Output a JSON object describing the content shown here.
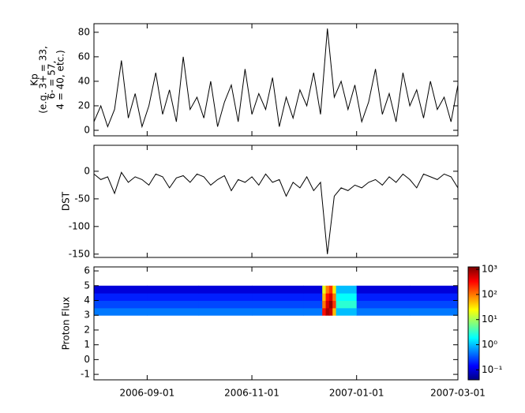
{
  "chart_data": [
    {
      "type": "line",
      "ylabel": [
        "Kp",
        "(e.g. 3+ = 33,",
        "6- = 57,",
        "4 = 40, etc.)"
      ],
      "x": [
        "2006-08-01",
        "2006-08-05",
        "2006-08-09",
        "2006-08-13",
        "2006-08-17",
        "2006-08-21",
        "2006-08-25",
        "2006-08-29",
        "2006-09-02",
        "2006-09-06",
        "2006-09-10",
        "2006-09-14",
        "2006-09-18",
        "2006-09-22",
        "2006-09-26",
        "2006-09-30",
        "2006-10-04",
        "2006-10-08",
        "2006-10-12",
        "2006-10-16",
        "2006-10-20",
        "2006-10-24",
        "2006-10-28",
        "2006-11-01",
        "2006-11-05",
        "2006-11-09",
        "2006-11-13",
        "2006-11-17",
        "2006-11-21",
        "2006-11-25",
        "2006-11-29",
        "2006-12-03",
        "2006-12-07",
        "2006-12-11",
        "2006-12-15",
        "2006-12-19",
        "2006-12-23",
        "2006-12-27",
        "2006-12-31",
        "2007-01-04",
        "2007-01-08",
        "2007-01-12",
        "2007-01-16",
        "2007-01-20",
        "2007-01-24",
        "2007-01-28",
        "2007-02-01",
        "2007-02-05",
        "2007-02-09",
        "2007-02-13",
        "2007-02-17",
        "2007-02-21",
        "2007-02-25",
        "2007-03-01"
      ],
      "series": [
        {
          "color": "#000000",
          "values": [
            7,
            20,
            3,
            17,
            57,
            10,
            30,
            3,
            20,
            47,
            13,
            33,
            7,
            60,
            17,
            27,
            10,
            40,
            3,
            23,
            37,
            7,
            50,
            13,
            30,
            17,
            43,
            3,
            27,
            10,
            33,
            20,
            47,
            13,
            83,
            27,
            40,
            17,
            37,
            7,
            23,
            50,
            13,
            30,
            7,
            47,
            20,
            33,
            10,
            40,
            17,
            27,
            7,
            37
          ]
        }
      ],
      "xlim": [
        "2006-08-01",
        "2007-03-01"
      ],
      "xticks": [
        "2006-09-01",
        "2006-11-01",
        "2007-01-01",
        "2007-03-01"
      ],
      "ylim": [
        -4.5,
        87
      ],
      "yticks": [
        0,
        20,
        40,
        60,
        80
      ]
    },
    {
      "type": "line",
      "ylabel": [
        "DST"
      ],
      "x": [
        "2006-08-01",
        "2006-08-05",
        "2006-08-09",
        "2006-08-13",
        "2006-08-17",
        "2006-08-21",
        "2006-08-25",
        "2006-08-29",
        "2006-09-02",
        "2006-09-06",
        "2006-09-10",
        "2006-09-14",
        "2006-09-18",
        "2006-09-22",
        "2006-09-26",
        "2006-09-30",
        "2006-10-04",
        "2006-10-08",
        "2006-10-12",
        "2006-10-16",
        "2006-10-20",
        "2006-10-24",
        "2006-10-28",
        "2006-11-01",
        "2006-11-05",
        "2006-11-09",
        "2006-11-13",
        "2006-11-17",
        "2006-11-21",
        "2006-11-25",
        "2006-11-29",
        "2006-12-03",
        "2006-12-07",
        "2006-12-11",
        "2006-12-15",
        "2006-12-19",
        "2006-12-23",
        "2006-12-27",
        "2006-12-31",
        "2007-01-04",
        "2007-01-08",
        "2007-01-12",
        "2007-01-16",
        "2007-01-20",
        "2007-01-24",
        "2007-01-28",
        "2007-02-01",
        "2007-02-05",
        "2007-02-09",
        "2007-02-13",
        "2007-02-17",
        "2007-02-21",
        "2007-02-25",
        "2007-03-01"
      ],
      "series": [
        {
          "color": "#000000",
          "values": [
            -5,
            -15,
            -10,
            -40,
            -2,
            -20,
            -10,
            -15,
            -25,
            -5,
            -10,
            -30,
            -12,
            -8,
            -20,
            -5,
            -10,
            -25,
            -15,
            -8,
            -35,
            -15,
            -20,
            -10,
            -25,
            -5,
            -20,
            -15,
            -45,
            -20,
            -30,
            -10,
            -35,
            -20,
            -150,
            -45,
            -30,
            -35,
            -25,
            -30,
            -20,
            -15,
            -25,
            -10,
            -20,
            -5,
            -15,
            -30,
            -5,
            -10,
            -15,
            -5,
            -10,
            -30
          ]
        }
      ],
      "xlim": [
        "2006-08-01",
        "2007-03-01"
      ],
      "xticks": [
        "2006-09-01",
        "2006-11-01",
        "2007-01-01",
        "2007-03-01"
      ],
      "ylim": [
        -156,
        47
      ],
      "yticks": [
        0,
        -50,
        -100,
        -150
      ]
    },
    {
      "type": "heatmap",
      "ylabel": [
        "Proton Flux"
      ],
      "x_edges": [
        "2006-08-01",
        "2006-09-01",
        "2006-10-01",
        "2006-11-01",
        "2006-12-01",
        "2006-12-12",
        "2006-12-14",
        "2006-12-16",
        "2006-12-18",
        "2006-12-20",
        "2007-01-01",
        "2007-02-01",
        "2007-03-01"
      ],
      "y_edges": [
        3,
        3.5,
        4,
        4.5,
        5
      ],
      "z": [
        [
          0.5,
          0.5,
          0.5,
          0.5,
          0.5,
          300,
          800,
          600,
          50,
          1,
          0.5,
          0.5
        ],
        [
          0.3,
          0.3,
          0.3,
          0.3,
          0.3,
          100,
          500,
          1000,
          200,
          3,
          0.3,
          0.3
        ],
        [
          0.2,
          0.2,
          0.2,
          0.2,
          0.2,
          50,
          300,
          500,
          100,
          2,
          0.2,
          0.2
        ],
        [
          0.1,
          0.1,
          0.1,
          0.1,
          0.1,
          20,
          100,
          200,
          30,
          1,
          0.1,
          0.1
        ]
      ],
      "zlim": [
        0.04,
        1250
      ],
      "zlog": true,
      "zticks": [
        {
          "value": 0.1,
          "label": "10⁻¹"
        },
        {
          "value": 1,
          "label": "10⁰"
        },
        {
          "value": 10,
          "label": "10¹"
        },
        {
          "value": 100,
          "label": "10²"
        },
        {
          "value": 1000,
          "label": "10³"
        }
      ],
      "xlim": [
        "2006-08-01",
        "2007-03-01"
      ],
      "xticks": [
        "2006-09-01",
        "2006-11-01",
        "2007-01-01",
        "2007-03-01"
      ],
      "ylim": [
        -1.37,
        6.27
      ],
      "yticks": [
        -1,
        0,
        1,
        2,
        3,
        4,
        5,
        6
      ]
    }
  ]
}
